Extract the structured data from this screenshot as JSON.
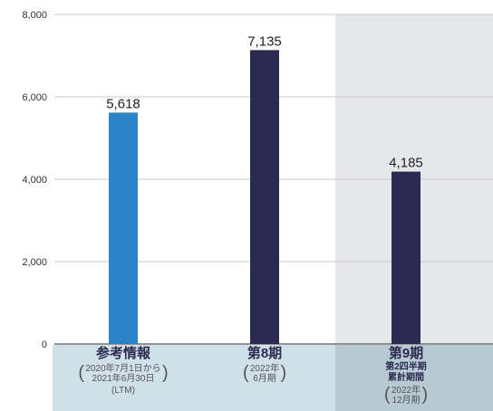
{
  "chart_data": {
    "type": "bar",
    "ylim": [
      0,
      8000
    ],
    "y_ticks": [
      "0",
      "2,000",
      "4,000",
      "6,000",
      "8,000"
    ],
    "y_tick_values": [
      0,
      2000,
      4000,
      6000,
      8000
    ],
    "grid": true,
    "categories": [
      {
        "title": "参考情報",
        "sub": "",
        "note_lines": [
          "2020年7月1日から",
          "2021年6月30日"
        ],
        "extra": "(LTM)",
        "value": 5618,
        "value_label": "5,618",
        "color": "#2a84c6",
        "band_color": "#cfe0e9"
      },
      {
        "title": "第8期",
        "sub": "",
        "note_lines": [
          "2022年",
          "6月期"
        ],
        "extra": "",
        "value": 7135,
        "value_label": "7,135",
        "color": "#2c2a52",
        "band_color": "#cfe0e9"
      },
      {
        "title": "第9期",
        "sub": "第2四半期\n累計期間",
        "note_lines": [
          "2022年",
          "12月期"
        ],
        "extra": "",
        "value": 4185,
        "value_label": "4,185",
        "color": "#2c2a52",
        "band_color": "#b7c9d2"
      }
    ],
    "highlight_band_color": "#e6e7ea"
  }
}
